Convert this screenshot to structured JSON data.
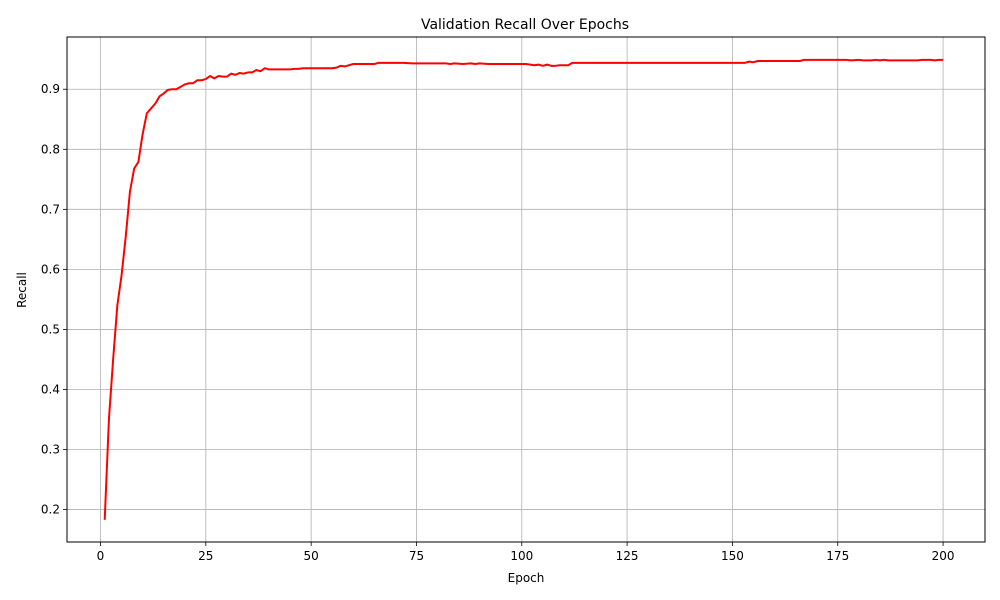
{
  "chart_data": {
    "type": "line",
    "title": "Validation Recall Over Epochs",
    "xlabel": "Epoch",
    "ylabel": "Recall",
    "xlim": [
      -7.95,
      209.95
    ],
    "ylim": [
      0.146,
      0.987
    ],
    "xticks": [
      0,
      25,
      50,
      75,
      100,
      125,
      150,
      175,
      200
    ],
    "yticks": [
      0.2,
      0.3,
      0.4,
      0.5,
      0.6,
      0.7,
      0.8,
      0.9
    ],
    "xtick_labels": [
      "0",
      "25",
      "50",
      "75",
      "100",
      "125",
      "150",
      "175",
      "200"
    ],
    "ytick_labels": [
      "0.2",
      "0.3",
      "0.4",
      "0.5",
      "0.6",
      "0.7",
      "0.8",
      "0.9"
    ],
    "grid": true,
    "series": [
      {
        "color": "#ff0000",
        "points": [
          [
            1,
            0.183
          ],
          [
            2,
            0.35
          ],
          [
            3,
            0.45
          ],
          [
            4,
            0.54
          ],
          [
            5,
            0.59
          ],
          [
            6,
            0.655
          ],
          [
            7,
            0.73
          ],
          [
            8,
            0.768
          ],
          [
            9,
            0.779
          ],
          [
            10,
            0.825
          ],
          [
            11,
            0.86
          ],
          [
            12,
            0.868
          ],
          [
            13,
            0.876
          ],
          [
            14,
            0.888
          ],
          [
            15,
            0.893
          ],
          [
            16,
            0.899
          ],
          [
            17,
            0.9
          ],
          [
            18,
            0.9
          ],
          [
            19,
            0.904
          ],
          [
            20,
            0.908
          ],
          [
            21,
            0.91
          ],
          [
            22,
            0.91
          ],
          [
            23,
            0.915
          ],
          [
            24,
            0.915
          ],
          [
            25,
            0.917
          ],
          [
            26,
            0.922
          ],
          [
            27,
            0.918
          ],
          [
            28,
            0.922
          ],
          [
            29,
            0.921
          ],
          [
            30,
            0.921
          ],
          [
            31,
            0.926
          ],
          [
            32,
            0.924
          ],
          [
            33,
            0.927
          ],
          [
            34,
            0.926
          ],
          [
            35,
            0.928
          ],
          [
            36,
            0.928
          ],
          [
            37,
            0.932
          ],
          [
            38,
            0.93
          ],
          [
            39,
            0.935
          ],
          [
            40,
            0.933
          ],
          [
            45,
            0.933
          ],
          [
            46,
            0.934
          ],
          [
            47,
            0.934
          ],
          [
            48,
            0.935
          ],
          [
            55,
            0.935
          ],
          [
            56,
            0.936
          ],
          [
            57,
            0.939
          ],
          [
            58,
            0.938
          ],
          [
            59,
            0.94
          ],
          [
            60,
            0.942
          ],
          [
            65,
            0.942
          ],
          [
            66,
            0.944
          ],
          [
            72,
            0.944
          ],
          [
            74,
            0.943
          ],
          [
            82,
            0.943
          ],
          [
            83,
            0.942
          ],
          [
            84,
            0.943
          ],
          [
            86,
            0.942
          ],
          [
            88,
            0.943
          ],
          [
            89,
            0.942
          ],
          [
            90,
            0.943
          ],
          [
            92,
            0.942
          ],
          [
            101,
            0.942
          ],
          [
            102,
            0.941
          ],
          [
            103,
            0.94
          ],
          [
            104,
            0.941
          ],
          [
            105,
            0.939
          ],
          [
            106,
            0.941
          ],
          [
            107,
            0.939
          ],
          [
            108,
            0.939
          ],
          [
            109,
            0.94
          ],
          [
            111,
            0.94
          ],
          [
            112,
            0.944
          ],
          [
            153,
            0.944
          ],
          [
            154,
            0.946
          ],
          [
            155,
            0.945
          ],
          [
            156,
            0.947
          ],
          [
            166,
            0.947
          ],
          [
            167,
            0.949
          ],
          [
            177,
            0.949
          ],
          [
            178,
            0.948
          ],
          [
            180,
            0.949
          ],
          [
            181,
            0.948
          ],
          [
            183,
            0.948
          ],
          [
            184,
            0.949
          ],
          [
            185,
            0.948
          ],
          [
            186,
            0.949
          ],
          [
            187,
            0.948
          ],
          [
            194,
            0.948
          ],
          [
            195,
            0.949
          ],
          [
            197,
            0.949
          ],
          [
            198,
            0.948
          ],
          [
            199,
            0.949
          ],
          [
            200,
            0.949
          ]
        ]
      }
    ]
  }
}
